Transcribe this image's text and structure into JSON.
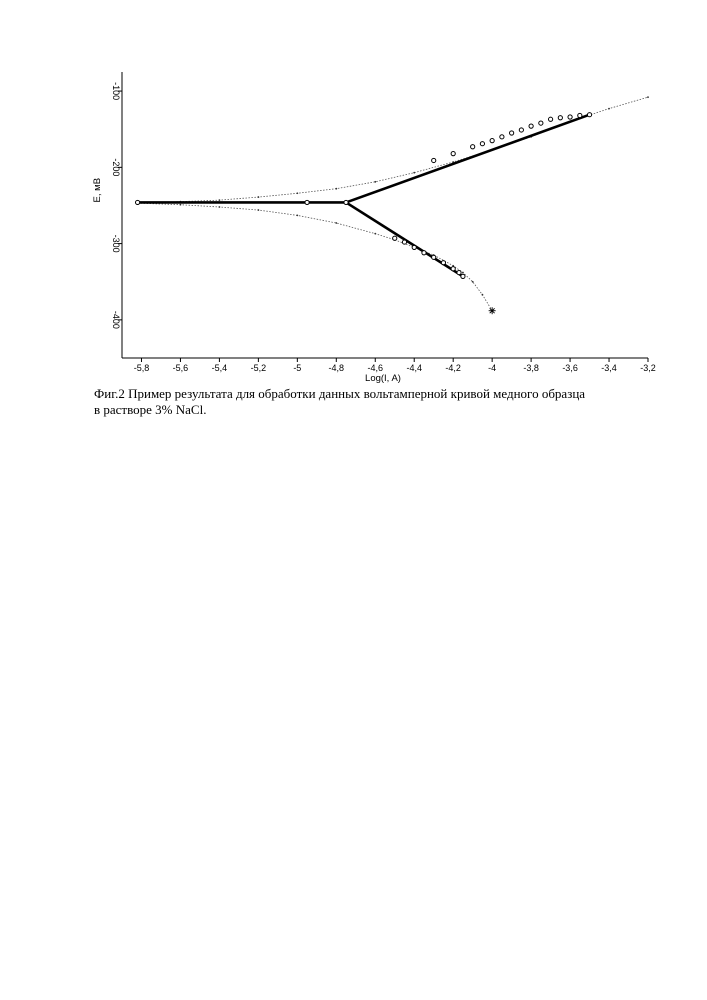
{
  "caption": {
    "line1": "Фиг.2  Пример результата для обработки данных вольтамперной кривой медного образца",
    "line2": "в растворе 3% NaCl."
  },
  "chart_data": {
    "type": "line",
    "xlabel": "Log(I, A)",
    "ylabel": "E, мВ",
    "xlim": [
      -5.9,
      -3.2
    ],
    "ylim": [
      -450,
      -75
    ],
    "y_inverted": true,
    "x_ticks": [
      {
        "value": -5.8,
        "label": "-5,8"
      },
      {
        "value": -5.6,
        "label": "-5,6"
      },
      {
        "value": -5.4,
        "label": "-5,4"
      },
      {
        "value": -5.2,
        "label": "-5,2"
      },
      {
        "value": -5.0,
        "label": "-5"
      },
      {
        "value": -4.8,
        "label": "-4,8"
      },
      {
        "value": -4.6,
        "label": "-4,6"
      },
      {
        "value": -4.4,
        "label": "-4,4"
      },
      {
        "value": -4.2,
        "label": "-4,2"
      },
      {
        "value": -4.0,
        "label": "-4"
      },
      {
        "value": -3.8,
        "label": "-3,8"
      },
      {
        "value": -3.6,
        "label": "-3,6"
      },
      {
        "value": -3.4,
        "label": "-3,4"
      },
      {
        "value": -3.2,
        "label": "-3,2"
      }
    ],
    "y_ticks": [
      {
        "value": -100,
        "label": "-100"
      },
      {
        "value": -200,
        "label": "-200"
      },
      {
        "value": -300,
        "label": "-300"
      },
      {
        "value": -400,
        "label": "-400"
      }
    ],
    "grid": false,
    "series": [
      {
        "style": "thin-dotted",
        "x": [
          -5.82,
          -5.6,
          -5.4,
          -5.2,
          -5.0,
          -4.8,
          -4.6,
          -4.4,
          -4.2,
          -4.0,
          -3.8,
          -3.6,
          -3.4,
          -3.2
        ],
        "y": [
          -247,
          -245,
          -243,
          -239,
          -234,
          -228,
          -219,
          -207,
          -193,
          -177,
          -160,
          -140,
          -123,
          -108
        ]
      },
      {
        "style": "thin-dotted",
        "x": [
          -5.82,
          -5.6,
          -5.4,
          -5.2,
          -5.0,
          -4.8,
          -4.6,
          -4.5,
          -4.4,
          -4.3,
          -4.2,
          -4.15,
          -4.1,
          -4.05,
          -4.0
        ],
        "y": [
          -247,
          -249,
          -252,
          -256,
          -263,
          -273,
          -287,
          -295,
          -305,
          -315,
          -329,
          -338,
          -350,
          -367,
          -388
        ]
      },
      {
        "style": "thick",
        "x": [
          -5.82,
          -4.75,
          -3.5
        ],
        "y": [
          -246,
          -246,
          -131
        ]
      },
      {
        "style": "thick",
        "x": [
          -4.75,
          -4.15
        ],
        "y": [
          -246,
          -343
        ]
      },
      {
        "style": "markers",
        "x": [
          -5.82,
          -4.95,
          -4.75,
          -4.3,
          -4.2,
          -4.1,
          -4.05,
          -4.0,
          -3.95,
          -3.9,
          -3.85,
          -3.8,
          -3.75,
          -3.7,
          -3.65,
          -3.6,
          -3.55,
          -3.5
        ],
        "y": [
          -246,
          -246,
          -246,
          -191,
          -182,
          -173,
          -169,
          -165,
          -160,
          -155,
          -151,
          -146,
          -142,
          -137,
          -135,
          -134,
          -132,
          -131
        ]
      },
      {
        "style": "markers",
        "x": [
          -4.5,
          -4.45,
          -4.4,
          -4.35,
          -4.3,
          -4.25,
          -4.2,
          -4.17,
          -4.15
        ],
        "y": [
          -293,
          -298,
          -305,
          -312,
          -318,
          -325,
          -333,
          -338,
          -343
        ]
      },
      {
        "style": "star",
        "x": [
          -4.0
        ],
        "y": [
          -388
        ]
      }
    ]
  }
}
